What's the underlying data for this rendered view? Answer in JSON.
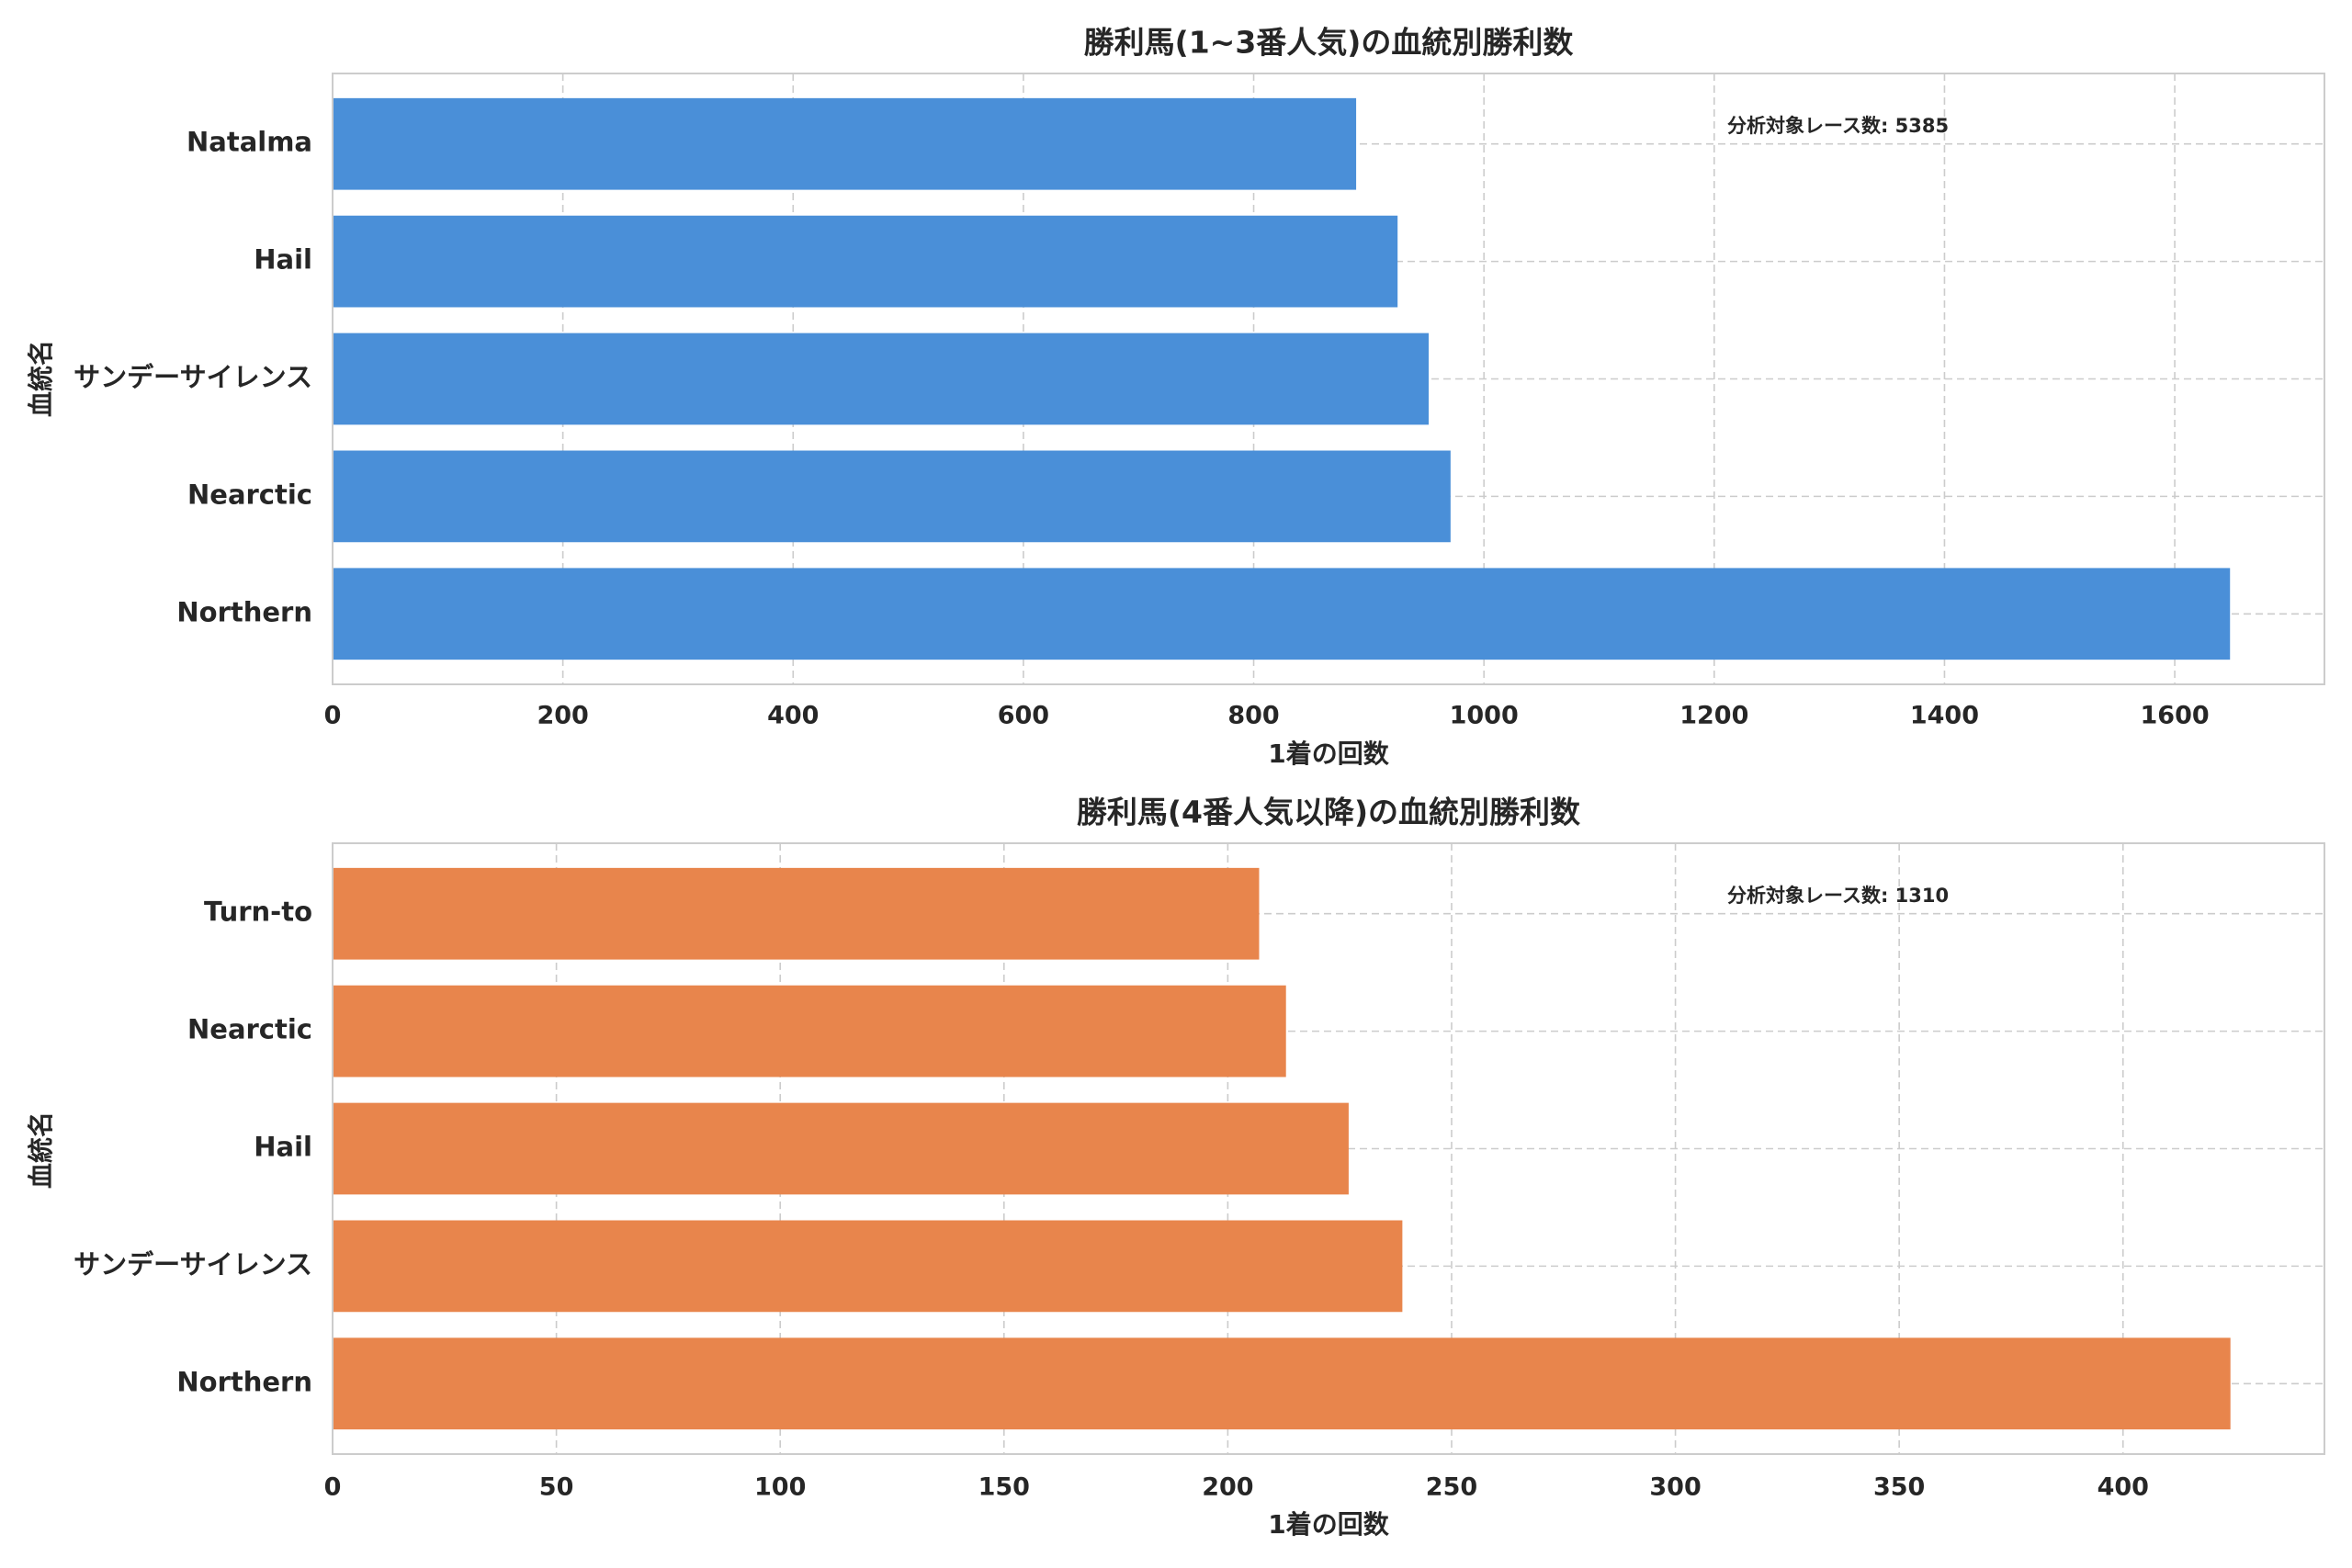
{
  "chart_data": [
    {
      "type": "bar",
      "orientation": "horizontal",
      "title": "勝利馬(1~3番人気)の血統別勝利数",
      "xlabel": "1着の回数",
      "ylabel": "血統名",
      "categories": [
        "Northern",
        "Nearctic",
        "サンデーサイレンス",
        "Hail",
        "Natalma"
      ],
      "values": [
        1648,
        971,
        952,
        925,
        889
      ],
      "xlim": [
        0,
        1730
      ],
      "xticks": [
        0,
        200,
        400,
        600,
        800,
        1000,
        1200,
        1400,
        1600
      ],
      "xtick_labels": [
        "0",
        "200",
        "400",
        "600",
        "800",
        "1000",
        "1200",
        "1400",
        "1600"
      ],
      "annotation": "分析対象レース数: 5385",
      "color": "#4a8fd8",
      "grid": true
    },
    {
      "type": "bar",
      "orientation": "horizontal",
      "title": "勝利馬(4番人気以降)の血統別勝利数",
      "xlabel": "1着の回数",
      "ylabel": "血統名",
      "categories": [
        "Northern",
        "サンデーサイレンス",
        "Hail",
        "Nearctic",
        "Turn-to"
      ],
      "values": [
        424,
        239,
        227,
        213,
        207
      ],
      "xlim": [
        0,
        445
      ],
      "xticks": [
        0,
        50,
        100,
        150,
        200,
        250,
        300,
        350,
        400
      ],
      "xtick_labels": [
        "0",
        "50",
        "100",
        "150",
        "200",
        "250",
        "300",
        "350",
        "400"
      ],
      "annotation": "分析対象レース数: 1310",
      "color": "#e8854c",
      "grid": true
    }
  ]
}
